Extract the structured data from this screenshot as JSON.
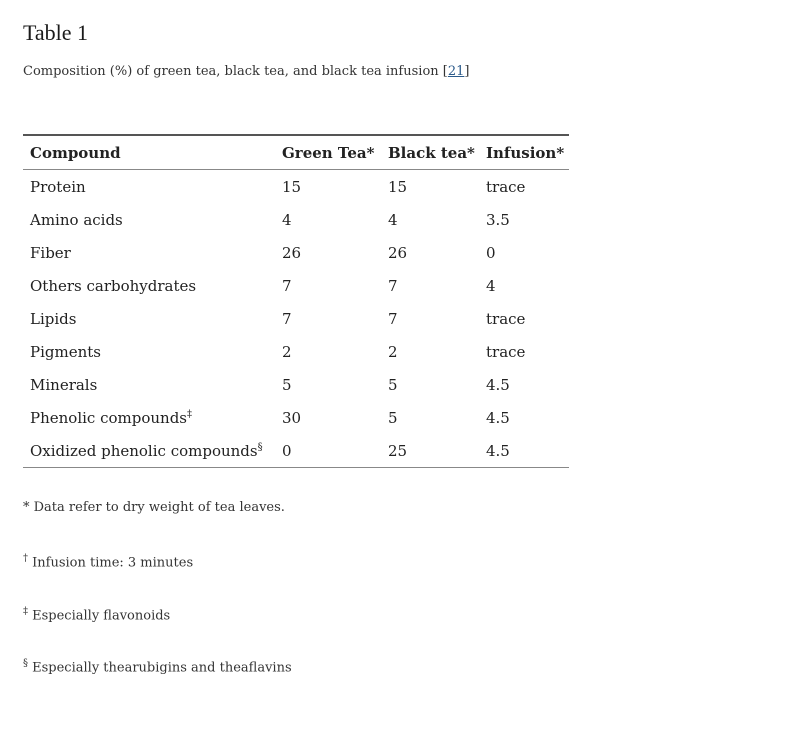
{
  "title": "Table 1",
  "caption": {
    "text": "Composition (%) of green tea, black tea, and black tea infusion [",
    "ref": "21",
    "end": "]"
  },
  "table": {
    "headers": [
      "Compound",
      "Green Tea*",
      "Black tea*",
      "Infusion*"
    ],
    "rows": [
      {
        "name": "Protein",
        "mark": "",
        "values": [
          "15",
          "15",
          "trace"
        ]
      },
      {
        "name": "Amino acids",
        "mark": "",
        "values": [
          "4",
          "4",
          "3.5"
        ]
      },
      {
        "name": "Fiber",
        "mark": "",
        "values": [
          "26",
          "26",
          "0"
        ]
      },
      {
        "name": "Others carbohydrates",
        "mark": "",
        "values": [
          "7",
          "7",
          "4"
        ]
      },
      {
        "name": "Lipids",
        "mark": "",
        "values": [
          "7",
          "7",
          "trace"
        ]
      },
      {
        "name": "Pigments",
        "mark": "",
        "values": [
          "2",
          "2",
          "trace"
        ]
      },
      {
        "name": "Minerals",
        "mark": "",
        "values": [
          "5",
          "5",
          "4.5"
        ]
      },
      {
        "name": "Phenolic compounds",
        "mark": "‡",
        "values": [
          "30",
          "5",
          "4.5"
        ]
      },
      {
        "name": "Oxidized phenolic compounds",
        "mark": "§",
        "values": [
          "0",
          "25",
          "4.5"
        ]
      }
    ]
  },
  "footnotes": [
    {
      "mark": "*",
      "text": " Data refer to dry weight of tea leaves."
    },
    {
      "mark": "†",
      "text": " Infusion time: 3 minutes"
    },
    {
      "mark": "‡",
      "text": " Especially flavonoids"
    },
    {
      "mark": "§",
      "text": " Especially thearubigins and theaflavins"
    }
  ]
}
